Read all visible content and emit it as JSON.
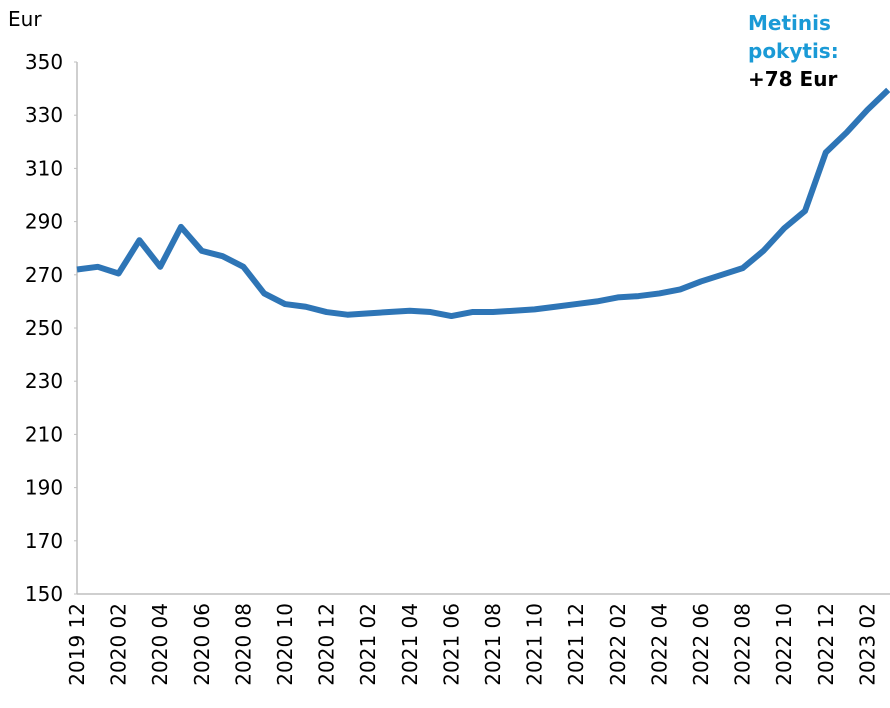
{
  "chart_data": {
    "type": "line",
    "y_label": "Eur",
    "annotation_lines": [
      "Metinis",
      "pokytis:"
    ],
    "annotation_value": "+78 Eur",
    "categories": [
      "2019 12",
      null,
      "2020 02",
      null,
      "2020 04",
      null,
      "2020 06",
      null,
      "2020 08",
      null,
      "2020 10",
      null,
      "2020 12",
      null,
      "2021 02",
      null,
      "2021 04",
      null,
      "2021 06",
      null,
      "2021 08",
      null,
      "2021 10",
      null,
      "2021 12",
      null,
      "2022 02",
      null,
      "2022 04",
      null,
      "2022 06",
      null,
      "2022 08",
      null,
      "2022 10",
      null,
      "2022 12",
      null,
      "2023 02",
      null
    ],
    "values": [
      272,
      273,
      270.5,
      283,
      273,
      288,
      279,
      277,
      273,
      263,
      259,
      258,
      256,
      255,
      255.5,
      256,
      256.5,
      256,
      254.5,
      256,
      256,
      256.5,
      257,
      258,
      259,
      260,
      261.5,
      262,
      263,
      264.5,
      267.5,
      270,
      272.5,
      279,
      287.5,
      294,
      316,
      323.5,
      332,
      339.5
    ],
    "color": "#2e75b6",
    "ylim": [
      150,
      350
    ],
    "yticks": [
      150,
      170,
      190,
      210,
      230,
      250,
      270,
      290,
      310,
      330,
      350
    ],
    "grid": false
  }
}
